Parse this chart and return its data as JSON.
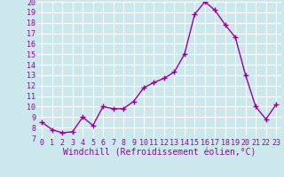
{
  "x": [
    0,
    1,
    2,
    3,
    4,
    5,
    6,
    7,
    8,
    9,
    10,
    11,
    12,
    13,
    14,
    15,
    16,
    17,
    18,
    19,
    20,
    21,
    22,
    23
  ],
  "y": [
    8.5,
    7.8,
    7.5,
    7.6,
    9.0,
    8.2,
    10.0,
    9.8,
    9.8,
    10.5,
    11.8,
    12.3,
    12.7,
    13.3,
    15.0,
    18.8,
    20.0,
    19.2,
    17.8,
    16.6,
    13.0,
    10.0,
    8.8,
    10.2
  ],
  "line_color": "#990099",
  "marker": "+",
  "marker_size": 4,
  "marker_linewidth": 1.0,
  "xlabel": "Windchill (Refroidissement éolien,°C)",
  "xlim": [
    -0.5,
    23.5
  ],
  "ylim": [
    7,
    20
  ],
  "yticks": [
    7,
    8,
    9,
    10,
    11,
    12,
    13,
    14,
    15,
    16,
    17,
    18,
    19,
    20
  ],
  "xticks": [
    0,
    1,
    2,
    3,
    4,
    5,
    6,
    7,
    8,
    9,
    10,
    11,
    12,
    13,
    14,
    15,
    16,
    17,
    18,
    19,
    20,
    21,
    22,
    23
  ],
  "bg_color": "#cce8ec",
  "grid_color": "#ffffff",
  "xlabel_color": "#990099",
  "tick_color": "#990099",
  "label_fontsize": 6.0,
  "xlabel_fontsize": 7.0,
  "linewidth": 1.0
}
